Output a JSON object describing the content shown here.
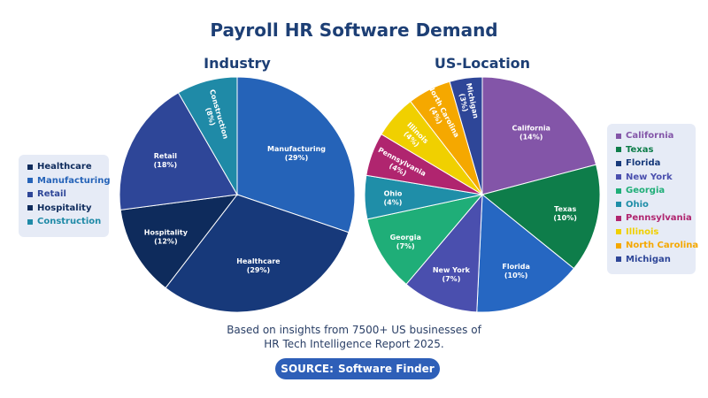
{
  "title": "Payroll HR Software Demand",
  "caption": {
    "line1": "Based on insights from 7500+ US businesses of",
    "line2": "HR Tech Intelligence Report 2025."
  },
  "source": {
    "label": "SOURCE:",
    "brand": "Software Finder"
  },
  "chart_data": [
    {
      "type": "pie",
      "title": "Industry",
      "legend_position": "left",
      "slices": [
        {
          "label": "Manufacturing",
          "value": 29,
          "color": "#2563b8",
          "display": "(29%)"
        },
        {
          "label": "Healthcare",
          "value": 29,
          "color": "#17397a",
          "display": "(29%)"
        },
        {
          "label": "Hospitality",
          "value": 12,
          "color": "#0e2b5c",
          "display": "(12%)"
        },
        {
          "label": "Retail",
          "value": 18,
          "color": "#2e4698",
          "display": "(18%)"
        },
        {
          "label": "Construction",
          "value": 8,
          "color": "#1f8aa7",
          "display": "(8%)"
        }
      ],
      "legend": [
        {
          "label": "Healthcare",
          "color": "#0e2b5c"
        },
        {
          "label": "Manufacturing",
          "color": "#2563b8"
        },
        {
          "label": "Retail",
          "color": "#2e4698"
        },
        {
          "label": "Hospitality",
          "color": "#0e2b5c"
        },
        {
          "label": "Construction",
          "color": "#1f8aa7"
        }
      ]
    },
    {
      "type": "pie",
      "title": "US-Location",
      "legend_position": "right",
      "slices": [
        {
          "label": "California",
          "value": 14,
          "color": "#8355a8",
          "display": "(14%)"
        },
        {
          "label": "Texas",
          "value": 10,
          "color": "#0e7d4a",
          "display": "(10%)"
        },
        {
          "label": "Florida",
          "value": 10,
          "color": "#2667c2",
          "display": "(10%)"
        },
        {
          "label": "New York",
          "value": 7,
          "color": "#4a4fae",
          "display": "(7%)"
        },
        {
          "label": "Georgia",
          "value": 7,
          "color": "#1fae78",
          "display": "(7%)"
        },
        {
          "label": "Ohio",
          "value": 4,
          "color": "#1f8ea8",
          "display": "(4%)"
        },
        {
          "label": "Pennsylvania",
          "value": 4,
          "color": "#b0256f",
          "display": "(4%)"
        },
        {
          "label": "Illinois",
          "value": 4,
          "color": "#f0d000",
          "display": "(4%)"
        },
        {
          "label": "North Carolina",
          "value": 4,
          "color": "#f5a800",
          "display": "(4%)"
        },
        {
          "label": "Michigan",
          "value": 3,
          "color": "#2e4698",
          "display": "(3%)"
        }
      ],
      "legend": [
        {
          "label": "California",
          "color": "#8355a8"
        },
        {
          "label": "Texas",
          "color": "#0e7d4a"
        },
        {
          "label": "Florida",
          "color": "#17397a"
        },
        {
          "label": "New York",
          "color": "#4a4fae"
        },
        {
          "label": "Georgia",
          "color": "#1fae78"
        },
        {
          "label": "Ohio",
          "color": "#1f8ea8"
        },
        {
          "label": "Pennsylvania",
          "color": "#b0256f"
        },
        {
          "label": "Illinois",
          "color": "#f0d000"
        },
        {
          "label": "North Carolina",
          "color": "#f5a800"
        },
        {
          "label": "Michigan",
          "color": "#2e4698"
        }
      ]
    }
  ]
}
